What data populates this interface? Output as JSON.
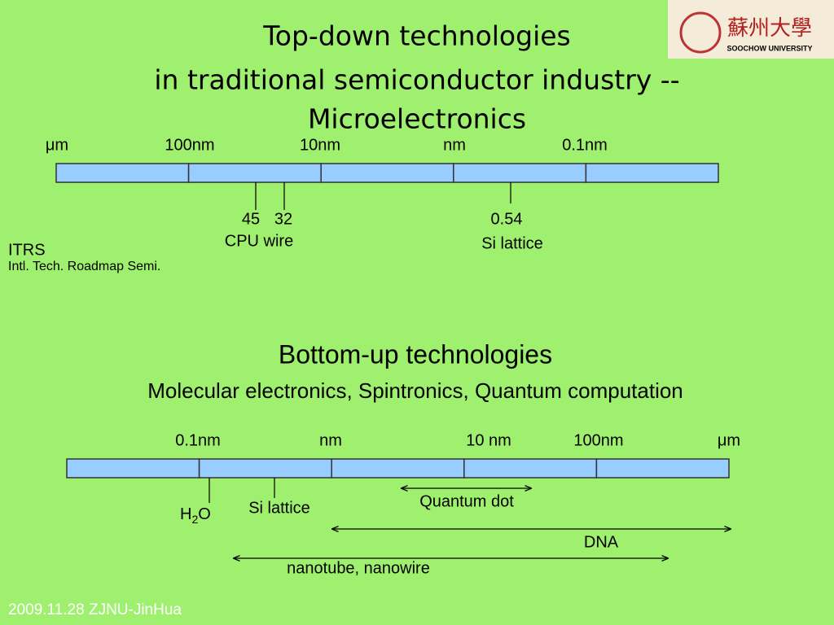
{
  "logo": {
    "chinese": "蘇州大學",
    "english": "SOOCHOW UNIVERSITY"
  },
  "top": {
    "title_lines": [
      "Top-down technologies",
      "in traditional semiconductor industry --",
      "Microelectronics"
    ],
    "scale_labels": [
      "μm",
      "100nm",
      "10nm",
      "nm",
      "0.1nm"
    ],
    "marks": {
      "n45": "45",
      "n32": "32",
      "cpu": "CPU wire",
      "n054": "0.54",
      "si": "Si lattice"
    },
    "itrs": "ITRS",
    "itrs_full": "Intl. Tech. Roadmap Semi."
  },
  "bottom": {
    "title": "Bottom-up technologies",
    "subtitle": "Molecular electronics, Spintronics, Quantum computation",
    "scale_labels": [
      "0.1nm",
      "nm",
      "10 nm",
      "100nm",
      "μm"
    ],
    "h2o": {
      "base": "H",
      "sub": "2",
      "tail": "O"
    },
    "si": "Si lattice",
    "ranges": {
      "quantum_dot": "Quantum dot",
      "dna": "DNA",
      "nanotube": "nanotube, nanowire"
    }
  },
  "footer": "2009.11.28 ZJNU-JinHua"
}
